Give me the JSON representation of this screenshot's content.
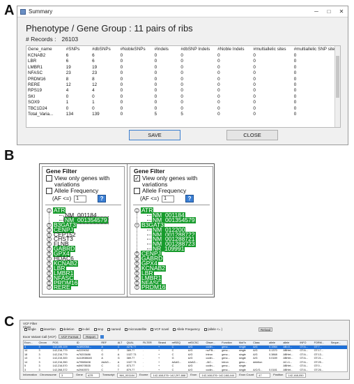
{
  "panel_letters": {
    "a": "A",
    "b": "B",
    "c": "C"
  },
  "panel_a": {
    "window_title": "Summary",
    "window_controls": [
      "─",
      "□",
      "✕"
    ],
    "phenotype_group": "Phenotype / Gene Group :  11 pairs of ribs",
    "records_label": "# Records :",
    "records_value": "26103",
    "columns": [
      "Gene_name",
      "#SNPs",
      "#dbSNPs",
      "#NobleSNPs",
      "#Indels",
      "#dbSNP Indels",
      "#Noble Indels",
      "#multiallelic sites",
      "#multiallelic SNP sites"
    ],
    "rows": [
      [
        "KCNAB2",
        "6",
        "6",
        "0",
        "0",
        "0",
        "0",
        "0",
        "0"
      ],
      [
        "LBR",
        "6",
        "6",
        "0",
        "0",
        "0",
        "0",
        "0",
        "0"
      ],
      [
        "LMBR1",
        "19",
        "19",
        "0",
        "0",
        "0",
        "0",
        "0",
        "0"
      ],
      [
        "NFASC",
        "23",
        "23",
        "0",
        "0",
        "0",
        "0",
        "0",
        "0"
      ],
      [
        "PRDM16",
        "8",
        "8",
        "0",
        "0",
        "0",
        "0",
        "0",
        "0"
      ],
      [
        "RERE",
        "12",
        "12",
        "0",
        "0",
        "0",
        "0",
        "0",
        "0"
      ],
      [
        "RPS19",
        "4",
        "4",
        "0",
        "0",
        "0",
        "0",
        "0",
        "0"
      ],
      [
        "SKI",
        "0",
        "0",
        "0",
        "0",
        "0",
        "0",
        "0",
        "0"
      ],
      [
        "SOX9",
        "1",
        "1",
        "0",
        "0",
        "0",
        "0",
        "0",
        "0"
      ],
      [
        "TBC1D24",
        "0",
        "0",
        "0",
        "0",
        "0",
        "0",
        "0",
        "0"
      ],
      [
        "Total_Varia...",
        "134",
        "139",
        "0",
        "5",
        "5",
        "0",
        "0",
        "0"
      ]
    ],
    "save_label": "SAVE",
    "close_label": "CLOSE"
  },
  "panel_b": {
    "left": {
      "title": "Gene Filter",
      "view_only_label": "View only genes with variations",
      "view_only_checked": false,
      "allele_frequency_label": "Allele Frequency",
      "allele_frequency_checked": false,
      "af_label": "(AF <=)",
      "af_value": "1",
      "help_label": "?",
      "tree": [
        {
          "label": "ATR",
          "level": 0,
          "expander": "−",
          "style": "hl"
        },
        {
          "label": "NM_001184",
          "level": 1,
          "expander": "",
          "style": ""
        },
        {
          "label": "NM_001354579",
          "level": 1,
          "expander": "",
          "style": "hl-outline"
        },
        {
          "label": "B3GAT3",
          "level": 0,
          "expander": "+",
          "style": "hl"
        },
        {
          "label": "CENPJ",
          "level": 0,
          "expander": "+",
          "style": "hl"
        },
        {
          "label": "CEP152",
          "level": 0,
          "expander": "+",
          "style": ""
        },
        {
          "label": "CHST3",
          "level": 0,
          "expander": "+",
          "style": ""
        },
        {
          "label": "FLNB",
          "level": 0,
          "expander": "+",
          "style": ""
        },
        {
          "label": "GABRD",
          "level": 0,
          "expander": "+",
          "style": "hl"
        },
        {
          "label": "GPX4",
          "level": 0,
          "expander": "+",
          "style": "hl"
        },
        {
          "label": "HDAC6",
          "level": 0,
          "expander": "+",
          "style": ""
        },
        {
          "label": "KCNAB2",
          "level": 0,
          "expander": "+",
          "style": "hl"
        },
        {
          "label": "LBR",
          "level": 0,
          "expander": "+",
          "style": "hl"
        },
        {
          "label": "LMBR1",
          "level": 0,
          "expander": "+",
          "style": "hl"
        },
        {
          "label": "NFASC",
          "level": 0,
          "expander": "+",
          "style": "hl"
        },
        {
          "label": "PRDM16",
          "level": 0,
          "expander": "+",
          "style": "hl"
        },
        {
          "label": "RERE",
          "level": 0,
          "expander": "+",
          "style": "hl"
        },
        {
          "label": "RPS19",
          "level": 0,
          "expander": "+",
          "style": ""
        },
        {
          "label": "SKI",
          "level": 0,
          "expander": "+",
          "style": ""
        },
        {
          "label": "SOX9",
          "level": 0,
          "expander": "+",
          "style": "hl"
        },
        {
          "label": "TBC1D24",
          "level": 0,
          "expander": "+",
          "style": ""
        }
      ]
    },
    "right": {
      "title": "Gene Filter",
      "view_only_label": "View only genes with variations",
      "view_only_checked": true,
      "allele_frequency_label": "Allele Frequency",
      "allele_frequency_checked": false,
      "af_label": "(AF <=)",
      "af_value": "1",
      "help_label": "?",
      "tree": [
        {
          "label": "ATR",
          "level": 0,
          "expander": "−",
          "style": "hl"
        },
        {
          "label": "NM_001184",
          "level": 1,
          "expander": "",
          "style": "hl"
        },
        {
          "label": "NM_001354579",
          "level": 1,
          "expander": "",
          "style": "hl"
        },
        {
          "label": "B3GAT3",
          "level": 0,
          "expander": "−",
          "style": "hl"
        },
        {
          "label": "NM_012200",
          "level": 1,
          "expander": "",
          "style": "hl"
        },
        {
          "label": "NM_001288722",
          "level": 1,
          "expander": "",
          "style": "hl"
        },
        {
          "label": "NM_001288721",
          "level": 1,
          "expander": "",
          "style": "hl"
        },
        {
          "label": "NM_001288723",
          "level": 1,
          "expander": "",
          "style": "hl"
        },
        {
          "label": "NR_109991",
          "level": 1,
          "expander": "",
          "style": "hl"
        },
        {
          "label": "CENPJ",
          "level": 0,
          "expander": "+",
          "style": "hl"
        },
        {
          "label": "GABRD",
          "level": 0,
          "expander": "+",
          "style": "hl"
        },
        {
          "label": "GPX4",
          "level": 0,
          "expander": "+",
          "style": "hl"
        },
        {
          "label": "KCNAB2",
          "level": 0,
          "expander": "+",
          "style": "hl"
        },
        {
          "label": "LBR",
          "level": 0,
          "expander": "+",
          "style": "hl"
        },
        {
          "label": "LMBR1",
          "level": 0,
          "expander": "+",
          "style": "hl"
        },
        {
          "label": "NFASC",
          "level": 0,
          "expander": "+",
          "style": "hl"
        },
        {
          "label": "PRDM16",
          "level": 0,
          "expander": "+",
          "style": "hl"
        },
        {
          "label": "RERE",
          "level": 0,
          "expander": "+",
          "style": "hl"
        },
        {
          "label": "SOX9",
          "level": 0,
          "expander": "+",
          "style": "hl"
        }
      ]
    }
  },
  "panel_c": {
    "vcf_filter_label": "VCF Filter",
    "class_label": "Class",
    "filter_checks": [
      "single",
      "insertion",
      "deletion",
      "in-del",
      "mnp",
      "named",
      "microsatellite",
      "VCF novel",
      "Allele Frequency",
      "(allele <= )"
    ],
    "reload_label": "Reload",
    "exon_variant_label": "Exon Variant Call (VCF)",
    "vcf_format_label": "VCF Format",
    "report_label": "Report",
    "columns": [
      "Exon...",
      "Chrom",
      "POS",
      "ID",
      "REF",
      "ALT",
      "QUAL",
      "FILTER",
      "Strand",
      "refSEQ",
      "refDCSC",
      "Obser...",
      "Function",
      "Mut?x",
      "Class",
      "allele",
      "allele",
      "INFO",
      "FORM...",
      "Seque..."
    ],
    "rows": [
      [
        "4",
        "3",
        "142,185,109",
        "rs1892058...",
        "A",
        "C",
        "4276.77",
        ".",
        "+",
        "C",
        "A/G",
        "codin...",
        "geno...",
        "single",
        "A/G",
        "0.1984",
        "AB=0...",
        "GT:A...",
        "GT:7...",
        ""
      ],
      [
        "14",
        "3",
        "142,216,779",
        "rs2229032",
        "C",
        "T",
        "389.77",
        ".",
        "+",
        "C",
        "A/G",
        "nc/FB...",
        "geno...",
        "single",
        "A/G",
        "0.1370",
        "ABHet...",
        "GT:A...",
        "GT:17...",
        ""
      ],
      [
        "18",
        "3",
        "142,216,779",
        "rs76203486",
        "G",
        "A",
        "1027.73",
        ".",
        "+",
        "C",
        "A/G",
        "intron",
        "geno...",
        "single",
        "A/G",
        "0.3868",
        "ABHet...",
        "GT:A...",
        "GT:13...",
        ""
      ],
      [
        "13",
        "3",
        "142,215,300",
        "rs113938645",
        "A",
        "G",
        "389.77",
        ".",
        "+",
        "G",
        "A/G",
        "codin...",
        "geno...",
        "single",
        "A/G",
        "0.0189",
        "ABHet...",
        "GT:A...",
        "GT:21...",
        ""
      ],
      [
        "14",
        "3",
        "142,216,350",
        "rs79585408",
        "AAAG...",
        "A",
        "1027.73",
        ".",
        "+",
        "AAAG...",
        "AAAG...",
        "-/AC...",
        "intron",
        "geno...",
        "deletion",
        "",
        "AC=1...",
        "GT:A...",
        "GT:25...",
        ""
      ],
      [
        "5",
        "3",
        "142,216,570",
        "rs59078535",
        "C",
        "C",
        "873.77",
        ".",
        "+",
        "C",
        "A/G",
        "codin...",
        "geno...",
        "single",
        "",
        "",
        "ABHet...",
        "GT:A...",
        "GT:0...",
        ""
      ],
      [
        "3",
        "3",
        "142,268,372",
        "rs2940570",
        "C",
        "T",
        "879.77",
        ".",
        "+",
        "C",
        "A/G",
        "codin...",
        "geno...",
        "single",
        "A/C/G...",
        "0.0181",
        "ABHet...",
        "GT:A...",
        "GT:26...",
        ""
      ]
    ],
    "info_label": "Information",
    "info_fields": [
      {
        "label": "Chromosome",
        "value": "3"
      },
      {
        "label": "Gene",
        "value": "ATR"
      },
      {
        "label": "Transcript",
        "value": "NM_001184"
      },
      {
        "label": "Exome",
        "value": "142,168,076~142,297,668"
      },
      {
        "label": "Exon",
        "value": "142,168,076~142,168,444"
      },
      {
        "label": "Exon Count",
        "value": "47"
      },
      {
        "label": "Position",
        "value": "142,168,050"
      }
    ]
  }
}
